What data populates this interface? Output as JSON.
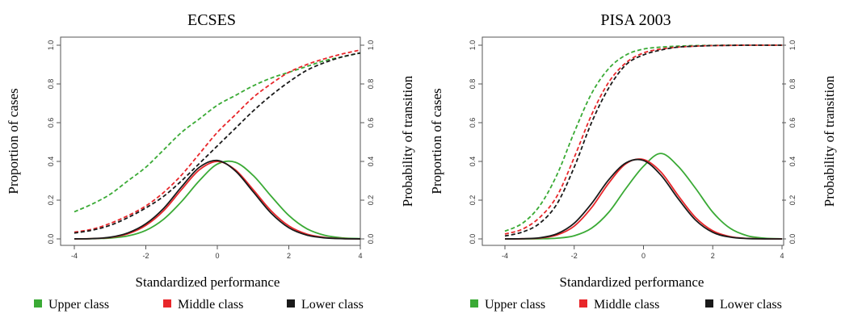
{
  "colors": {
    "upper": "#3aaa35",
    "middle": "#e8262a",
    "lower": "#1a1a1a"
  },
  "legend": [
    {
      "label": "Upper class",
      "color": "#3aaa35"
    },
    {
      "label": "Middle class",
      "color": "#e8262a"
    },
    {
      "label": "Lower class",
      "color": "#1a1a1a"
    }
  ],
  "chart_data": [
    {
      "type": "line",
      "title": "ECSES",
      "xlabel": "Standardized performance",
      "ylabel_left": "Proportion of cases",
      "ylabel_right": "Probability of transition",
      "xlim": [
        -4,
        4
      ],
      "ylim": [
        0,
        1
      ],
      "x_ticks": [
        "-4",
        "-2",
        "0",
        "2",
        "4"
      ],
      "y_ticks": [
        "0.0",
        "0.2",
        "0.4",
        "0.6",
        "0.8",
        "1.0"
      ],
      "x": [
        -4,
        -3.5,
        -3,
        -2.5,
        -2,
        -1.5,
        -1,
        -0.5,
        0,
        0.5,
        1,
        1.5,
        2,
        2.5,
        3,
        3.5,
        4
      ],
      "grid": false,
      "series": [
        {
          "name": "Upper class",
          "kind": "density",
          "style": "solid",
          "color": "#3aaa35",
          "y": [
            0.0002,
            0.001,
            0.0044,
            0.0154,
            0.044,
            0.102,
            0.193,
            0.301,
            0.386,
            0.396,
            0.328,
            0.222,
            0.121,
            0.053,
            0.0187,
            0.0053,
            0.0012
          ]
        },
        {
          "name": "Middle class",
          "kind": "density",
          "style": "solid",
          "color": "#e8262a",
          "y": [
            0.0002,
            0.0014,
            0.0074,
            0.0266,
            0.07,
            0.146,
            0.255,
            0.357,
            0.4,
            0.357,
            0.255,
            0.146,
            0.067,
            0.025,
            0.0074,
            0.0017,
            0.0003
          ]
        },
        {
          "name": "Lower class",
          "kind": "density",
          "style": "solid",
          "color": "#1a1a1a",
          "y": [
            0.0003,
            0.0017,
            0.0086,
            0.031,
            0.078,
            0.158,
            0.269,
            0.37,
            0.405,
            0.352,
            0.244,
            0.134,
            0.058,
            0.02,
            0.0054,
            0.0011,
            0.0002
          ]
        },
        {
          "name": "Upper class",
          "kind": "transition",
          "style": "dashed",
          "color": "#3aaa35",
          "y": [
            0.14,
            0.18,
            0.23,
            0.3,
            0.37,
            0.46,
            0.55,
            0.62,
            0.69,
            0.74,
            0.79,
            0.83,
            0.86,
            0.89,
            0.92,
            0.94,
            0.96
          ]
        },
        {
          "name": "Middle class",
          "kind": "transition",
          "style": "dashed",
          "color": "#e8262a",
          "y": [
            0.035,
            0.05,
            0.08,
            0.12,
            0.17,
            0.24,
            0.33,
            0.44,
            0.55,
            0.64,
            0.73,
            0.8,
            0.86,
            0.9,
            0.93,
            0.955,
            0.975
          ]
        },
        {
          "name": "Lower class",
          "kind": "transition",
          "style": "dashed",
          "color": "#1a1a1a",
          "y": [
            0.03,
            0.045,
            0.07,
            0.11,
            0.16,
            0.22,
            0.3,
            0.39,
            0.48,
            0.57,
            0.66,
            0.74,
            0.81,
            0.87,
            0.91,
            0.94,
            0.96
          ]
        }
      ]
    },
    {
      "type": "line",
      "title": "PISA 2003",
      "xlabel": "Standardized performance",
      "ylabel_left": "Proportion of cases",
      "ylabel_right": "Probability of transition",
      "xlim": [
        -4,
        4
      ],
      "ylim": [
        0,
        1
      ],
      "x_ticks": [
        "-4",
        "-2",
        "0",
        "2",
        "4"
      ],
      "y_ticks": [
        "0.0",
        "0.2",
        "0.4",
        "0.6",
        "0.8",
        "1.0"
      ],
      "x": [
        -4,
        -3.5,
        -3,
        -2.5,
        -2,
        -1.5,
        -1,
        -0.5,
        0,
        0.5,
        1,
        1.5,
        2,
        2.5,
        3,
        3.5,
        4
      ],
      "grid": false,
      "series": [
        {
          "name": "Upper class",
          "kind": "density",
          "style": "solid",
          "color": "#3aaa35",
          "y": [
            0.0,
            0.0001,
            0.0006,
            0.0037,
            0.0163,
            0.055,
            0.138,
            0.262,
            0.375,
            0.441,
            0.375,
            0.262,
            0.138,
            0.055,
            0.0163,
            0.0037,
            0.0006
          ]
        },
        {
          "name": "Middle class",
          "kind": "density",
          "style": "solid",
          "color": "#e8262a",
          "y": [
            0.0001,
            0.0007,
            0.0043,
            0.02,
            0.066,
            0.161,
            0.289,
            0.389,
            0.41,
            0.346,
            0.224,
            0.111,
            0.042,
            0.012,
            0.0025,
            0.0004,
            0.0001
          ]
        },
        {
          "name": "Lower class",
          "kind": "density",
          "style": "solid",
          "color": "#1a1a1a",
          "y": [
            0.0001,
            0.001,
            0.0059,
            0.026,
            0.081,
            0.182,
            0.306,
            0.393,
            0.405,
            0.33,
            0.208,
            0.098,
            0.034,
            0.0092,
            0.0018,
            0.0003,
            0.0
          ]
        },
        {
          "name": "Upper class",
          "kind": "transition",
          "style": "dashed",
          "color": "#3aaa35",
          "y": [
            0.04,
            0.08,
            0.17,
            0.33,
            0.55,
            0.75,
            0.88,
            0.95,
            0.98,
            0.99,
            0.995,
            0.998,
            0.999,
            1.0,
            1.0,
            1.0,
            1.0
          ]
        },
        {
          "name": "Middle class",
          "kind": "transition",
          "style": "dashed",
          "color": "#e8262a",
          "y": [
            0.025,
            0.05,
            0.11,
            0.22,
            0.42,
            0.64,
            0.81,
            0.91,
            0.96,
            0.98,
            0.99,
            0.995,
            0.998,
            0.999,
            1.0,
            1.0,
            1.0
          ]
        },
        {
          "name": "Lower class",
          "kind": "transition",
          "style": "dashed",
          "color": "#1a1a1a",
          "y": [
            0.015,
            0.035,
            0.08,
            0.18,
            0.37,
            0.6,
            0.78,
            0.9,
            0.95,
            0.975,
            0.99,
            0.995,
            0.998,
            0.999,
            1.0,
            1.0,
            1.0
          ]
        }
      ]
    }
  ]
}
